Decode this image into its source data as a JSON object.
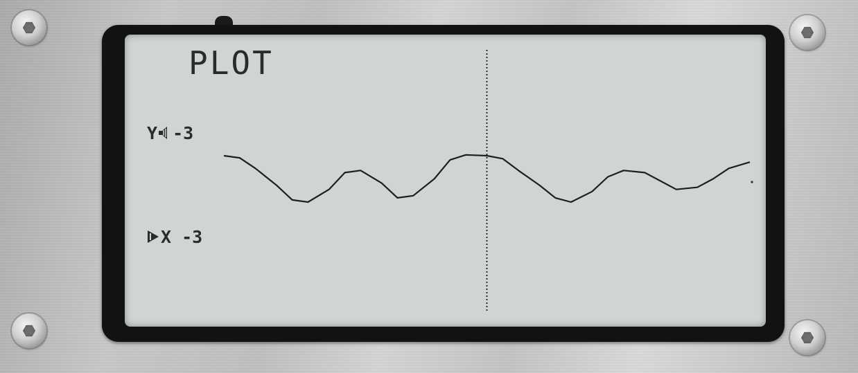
{
  "screen": {
    "title": "PLOT",
    "y_readout": {
      "axis": "Y",
      "value": "-3",
      "icon": "speaker-icon"
    },
    "x_readout": {
      "axis": "X",
      "value": "-3",
      "icon": "play-marker-icon"
    }
  },
  "colors": {
    "lcd_background": "#cfd5d3",
    "lcd_ink": "#2b2b2b",
    "bezel": "#121212"
  },
  "chart_data": {
    "type": "line",
    "title": "PLOT",
    "xlabel": "",
    "ylabel": "",
    "x": [
      0,
      0.03,
      0.06,
      0.1,
      0.13,
      0.16,
      0.2,
      0.23,
      0.26,
      0.3,
      0.33,
      0.36,
      0.4,
      0.43,
      0.46,
      0.5,
      0.53,
      0.56,
      0.6,
      0.63,
      0.66,
      0.7,
      0.73,
      0.76,
      0.8,
      0.83,
      0.86,
      0.9,
      0.93,
      0.96,
      1.0
    ],
    "series": [
      {
        "values": [
          0.95,
          0.9,
          0.65,
          0.25,
          -0.1,
          -0.15,
          0.15,
          0.55,
          0.6,
          0.3,
          -0.05,
          -0.0,
          0.4,
          0.85,
          0.97,
          0.95,
          0.88,
          0.6,
          0.25,
          -0.05,
          -0.15,
          0.1,
          0.45,
          0.6,
          0.55,
          0.35,
          0.15,
          0.2,
          0.4,
          0.65,
          0.8
        ]
      }
    ],
    "cursor_x": 0.5,
    "grid": false
  }
}
